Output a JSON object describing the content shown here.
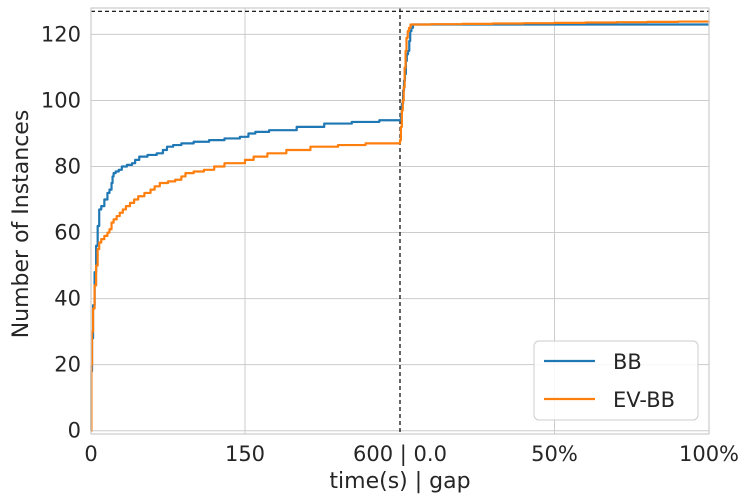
{
  "chart_data": {
    "type": "line",
    "title": "",
    "xlabel": "time(s) | gap",
    "ylabel": "Number of Instances",
    "x_tick_labels": [
      "0",
      "150",
      "600 | 0.0",
      "50%",
      "100%"
    ],
    "y_ticks": [
      0,
      20,
      40,
      60,
      80,
      100,
      120
    ],
    "y_tick_labels": [
      "0",
      "20",
      "40",
      "60",
      "80",
      "100",
      "120"
    ],
    "ylim": [
      -1,
      128
    ],
    "x_axis_note": "piecewise axis: left half is time in seconds (0 to 600), right half is optimality gap (0.0 to 100%)",
    "total_instances_reference": 127,
    "grid": true,
    "legend_position": "lower-right",
    "colors": {
      "BB": "#1f77b4",
      "EV-BB": "#ff7f0e",
      "reference": "#000000",
      "grid": "#cccccc"
    },
    "series": [
      {
        "name": "BB",
        "time_points": [
          [
            0,
            0
          ],
          [
            0.4,
            18
          ],
          [
            1,
            28
          ],
          [
            2,
            38
          ],
          [
            3.5,
            48
          ],
          [
            5,
            56
          ],
          [
            6.5,
            62
          ],
          [
            8,
            67
          ],
          [
            10,
            68
          ],
          [
            13,
            70
          ],
          [
            16,
            72
          ],
          [
            18,
            73
          ],
          [
            20,
            75
          ],
          [
            21,
            77
          ],
          [
            22,
            78
          ],
          [
            24,
            78.5
          ],
          [
            27,
            79
          ],
          [
            30,
            80
          ],
          [
            35,
            80.5
          ],
          [
            40,
            81
          ],
          [
            43,
            82
          ],
          [
            47,
            83
          ],
          [
            55,
            83.5
          ],
          [
            64,
            84
          ],
          [
            70,
            85
          ],
          [
            74,
            86
          ],
          [
            80,
            86.5
          ],
          [
            88,
            87
          ],
          [
            100,
            87.5
          ],
          [
            115,
            88
          ],
          [
            130,
            88.5
          ],
          [
            145,
            89
          ],
          [
            160,
            90
          ],
          [
            180,
            90.5
          ],
          [
            220,
            91
          ],
          [
            300,
            92
          ],
          [
            380,
            93
          ],
          [
            460,
            93.5
          ],
          [
            540,
            94
          ],
          [
            600,
            94
          ]
        ],
        "gap_points": [
          [
            0,
            94
          ],
          [
            0.3,
            96
          ],
          [
            0.6,
            99
          ],
          [
            1,
            103
          ],
          [
            1.3,
            106
          ],
          [
            1.6,
            108
          ],
          [
            1.9,
            112
          ],
          [
            2.2,
            114
          ],
          [
            2.6,
            115
          ],
          [
            3,
            118
          ],
          [
            3.3,
            121
          ],
          [
            3.7,
            122
          ],
          [
            4.2,
            123
          ],
          [
            10,
            123
          ],
          [
            20,
            123
          ],
          [
            30,
            123
          ],
          [
            40,
            123
          ],
          [
            50,
            123
          ],
          [
            60,
            123
          ],
          [
            70,
            123
          ],
          [
            80,
            123
          ],
          [
            90,
            123
          ],
          [
            100,
            123
          ]
        ]
      },
      {
        "name": "EV-BB",
        "time_points": [
          [
            0,
            0
          ],
          [
            0.4,
            20
          ],
          [
            1,
            30
          ],
          [
            2,
            37
          ],
          [
            3.5,
            44
          ],
          [
            5,
            50
          ],
          [
            6.5,
            55
          ],
          [
            8,
            57
          ],
          [
            10,
            58
          ],
          [
            13,
            59
          ],
          [
            16,
            60
          ],
          [
            18,
            61
          ],
          [
            20,
            63
          ],
          [
            22,
            64
          ],
          [
            25,
            65
          ],
          [
            28,
            66
          ],
          [
            31,
            67
          ],
          [
            34,
            68
          ],
          [
            38,
            69
          ],
          [
            42,
            70
          ],
          [
            46,
            71
          ],
          [
            52,
            72
          ],
          [
            58,
            73
          ],
          [
            62,
            74
          ],
          [
            67,
            75
          ],
          [
            75,
            75.5
          ],
          [
            82,
            76
          ],
          [
            88,
            77
          ],
          [
            92,
            78
          ],
          [
            100,
            78.5
          ],
          [
            110,
            79
          ],
          [
            120,
            80
          ],
          [
            130,
            81
          ],
          [
            150,
            82
          ],
          [
            175,
            83
          ],
          [
            215,
            84
          ],
          [
            270,
            85
          ],
          [
            340,
            86
          ],
          [
            420,
            86.5
          ],
          [
            500,
            87
          ],
          [
            600,
            88
          ]
        ],
        "gap_points": [
          [
            0,
            88
          ],
          [
            0.3,
            92
          ],
          [
            0.6,
            97
          ],
          [
            0.9,
            100
          ],
          [
            1.2,
            104
          ],
          [
            1.5,
            110
          ],
          [
            1.8,
            115
          ],
          [
            2.1,
            119
          ],
          [
            2.5,
            121
          ],
          [
            2.9,
            122
          ],
          [
            3.4,
            123
          ],
          [
            10,
            123.1
          ],
          [
            20,
            123.2
          ],
          [
            30,
            123.3
          ],
          [
            40,
            123.4
          ],
          [
            50,
            123.5
          ],
          [
            60,
            123.6
          ],
          [
            70,
            123.7
          ],
          [
            80,
            123.8
          ],
          [
            90,
            123.9
          ],
          [
            100,
            124
          ]
        ]
      }
    ]
  }
}
